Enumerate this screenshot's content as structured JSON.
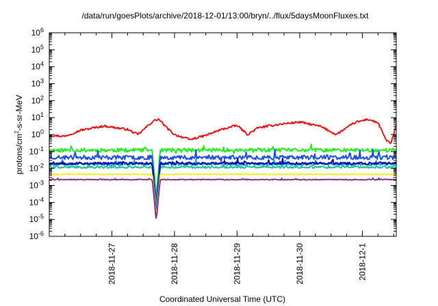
{
  "chart_data": {
    "type": "line",
    "title": "/data/run/goesPlots/archive/2018-12-01/13:00/bryn/../flux/5daysMoonFluxes.txt",
    "xlabel": "Coordinated Universal Time (UTC)",
    "ylabel_parts": {
      "a": "protons/cm",
      "sup": "2",
      "b": "-s-sr-MeV"
    },
    "y_scale": "log",
    "ylim_exp": [
      -6,
      6
    ],
    "x_axis": "date",
    "xlim": [
      "2018-11-26 00:00",
      "2018-12-01 13:00"
    ],
    "x_ticks": [
      "2018-11-27",
      "2018-11-28",
      "2018-11-29",
      "2018-11-30",
      "2018-12-1"
    ],
    "grid": false,
    "legend": "none",
    "dip": {
      "x": "2018-11-27 17:00",
      "depth_exp": [
        -3.7,
        -4.0,
        -4.3,
        -4.5,
        -4.8,
        -4.9,
        -5.1
      ]
    },
    "series": [
      {
        "color": "#e8191b",
        "knots": [
          [
            "2018-11-26 00:00",
            0.9
          ],
          [
            "2018-11-26 06:00",
            0.8
          ],
          [
            "2018-11-26 12:00",
            1.8
          ],
          [
            "2018-11-26 21:00",
            3.2
          ],
          [
            "2018-11-27 06:00",
            2.0
          ],
          [
            "2018-11-27 10:00",
            1.0
          ],
          [
            "2018-11-27 14:00",
            3.5
          ],
          [
            "2018-11-27 16:00",
            6.5
          ],
          [
            "2018-11-27 18:00",
            8.0
          ],
          [
            "2018-11-27 21:00",
            2.5
          ],
          [
            "2018-11-28 00:00",
            1.0
          ],
          [
            "2018-11-28 06:00",
            0.5
          ],
          [
            "2018-11-28 12:00",
            0.9
          ],
          [
            "2018-11-28 18:00",
            2.0
          ],
          [
            "2018-11-29 00:00",
            3.5
          ],
          [
            "2018-11-29 04:00",
            1.0
          ],
          [
            "2018-11-29 08:00",
            2.5
          ],
          [
            "2018-11-29 16:00",
            4.0
          ],
          [
            "2018-11-30 00:00",
            5.5
          ],
          [
            "2018-11-30 08:00",
            3.0
          ],
          [
            "2018-11-30 14:00",
            1.0
          ],
          [
            "2018-11-30 21:00",
            5.0
          ],
          [
            "2018-12-01 02:00",
            8.0
          ],
          [
            "2018-12-01 06:00",
            5.0
          ],
          [
            "2018-12-01 09:00",
            0.5
          ],
          [
            "2018-12-01 11:00",
            0.3
          ],
          [
            "2018-12-01 13:00",
            3.5
          ]
        ]
      },
      {
        "color": "#22ee22",
        "base": 0.12,
        "amp": 0.09,
        "seed": 11
      },
      {
        "color": "#1e50e6",
        "base": 0.045,
        "amp": 0.1,
        "seed": 23
      },
      {
        "color": "#1aa0f0",
        "base": 0.018,
        "amp": 0.07,
        "seed": 37
      },
      {
        "color": "#21c19a",
        "base": 0.012,
        "amp": 0.05,
        "seed": 41
      },
      {
        "color": "#000ca8",
        "base": 0.02,
        "amp": 0.06,
        "seed": 53
      },
      {
        "color": "#f0f020",
        "base": 0.0045,
        "amp": 0.015,
        "seed": 61
      },
      {
        "color": "#8e2f8e",
        "base": 0.0022,
        "amp": 0.02,
        "seed": 77
      }
    ]
  }
}
